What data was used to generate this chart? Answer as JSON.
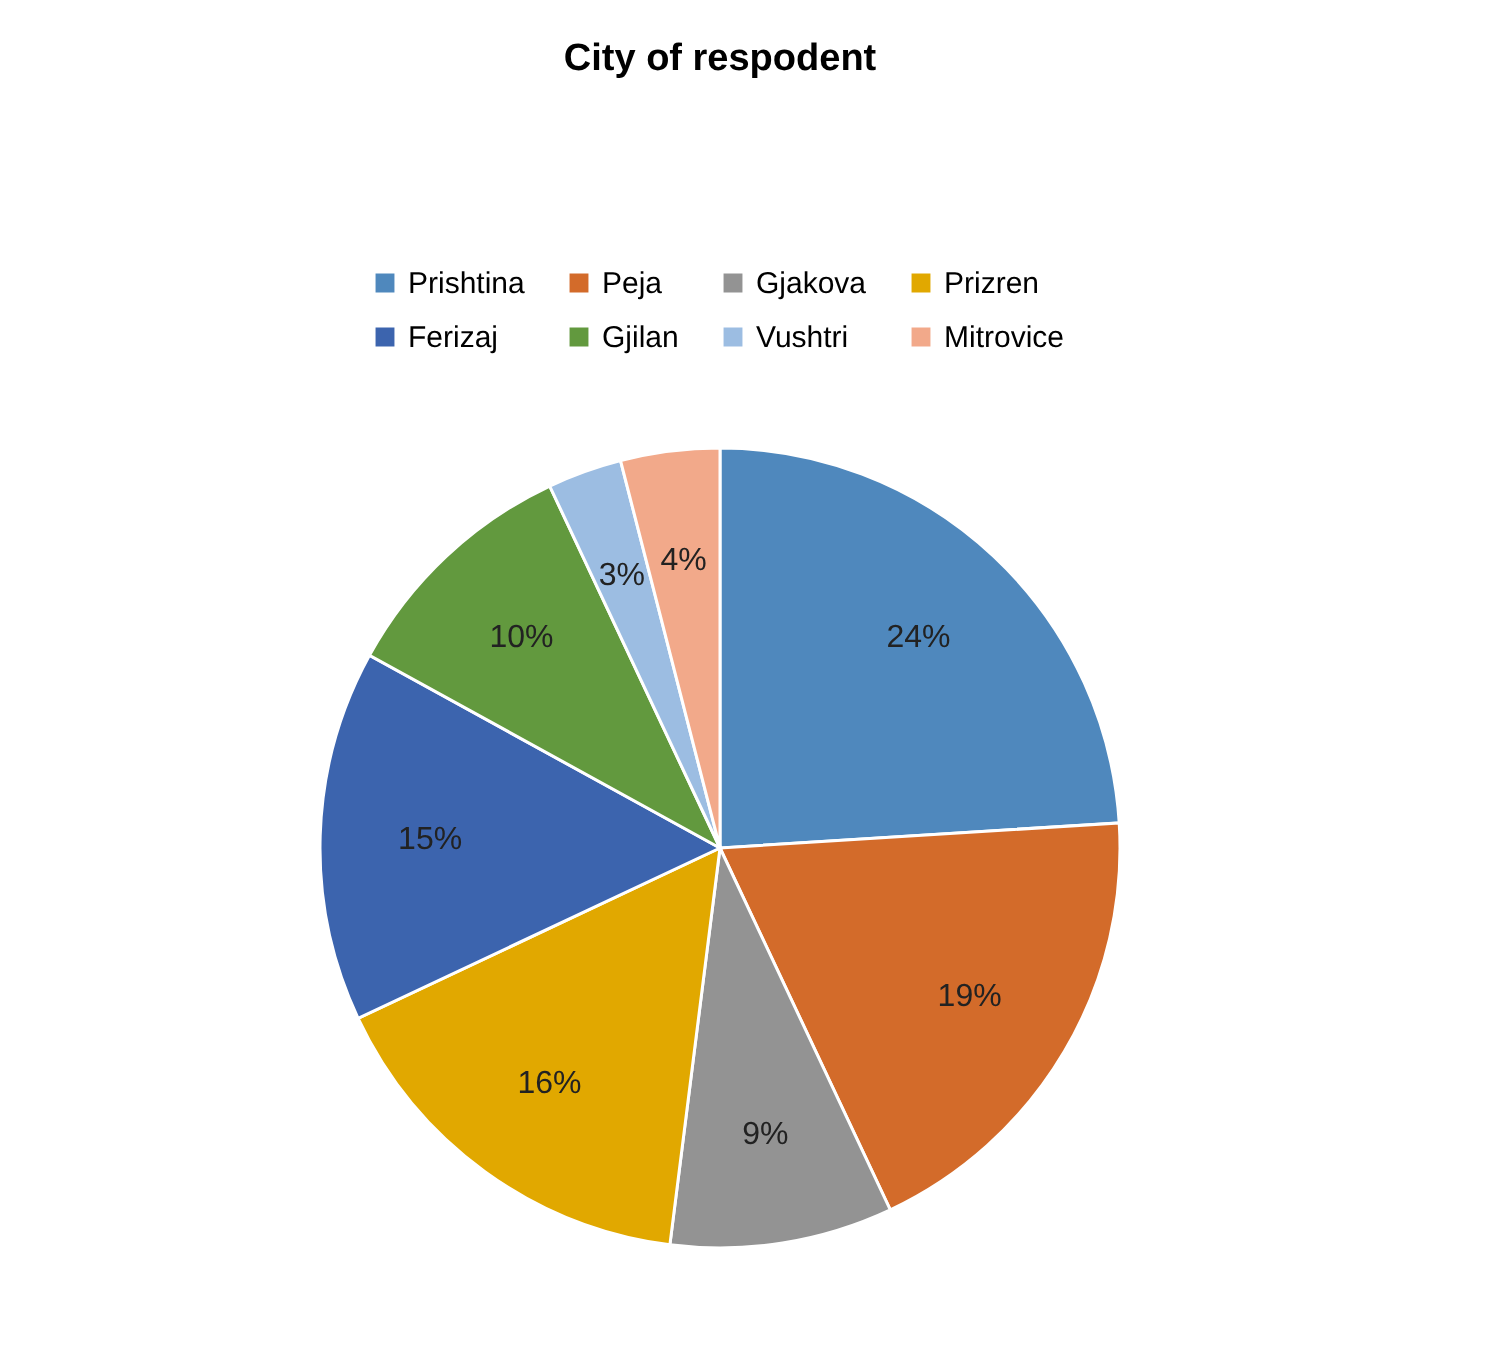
{
  "chart_data": {
    "type": "pie",
    "title": "City of respodent",
    "categories": [
      "Prishtina",
      "Peja",
      "Gjakova",
      "Prizren",
      "Ferizaj",
      "Gjilan",
      "Vushtri",
      "Mitrovice"
    ],
    "values": [
      24,
      19,
      9,
      16,
      15,
      10,
      3,
      4
    ],
    "colors": [
      "#4f88bd",
      "#d36b2a",
      "#939393",
      "#e1a800",
      "#3c64ae",
      "#62993e",
      "#9cbde2",
      "#f2a98a"
    ],
    "value_labels": [
      "24%",
      "19%",
      "9%",
      "16%",
      "15%",
      "10%",
      "3%",
      "4%"
    ],
    "legend": "top"
  }
}
